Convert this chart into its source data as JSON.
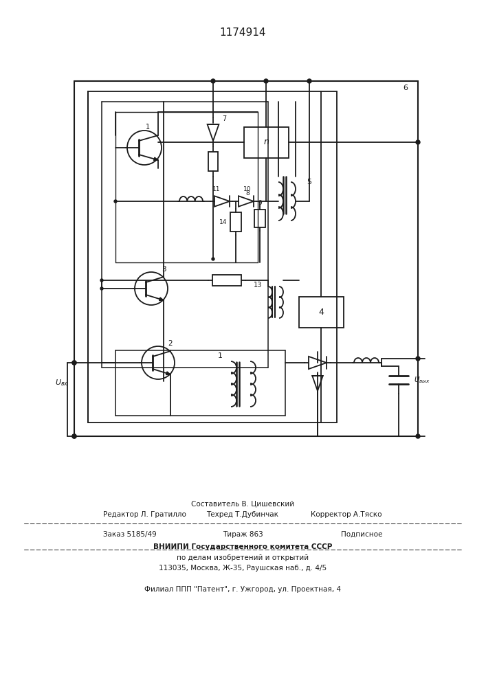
{
  "title": "1174914",
  "bg_color": "#ffffff",
  "line_color": "#1a1a1a",
  "footer": {
    "line1_left": "Редактор Л. Гратилло",
    "line1_center": "Техред Т.Дубинчак",
    "line1_right": "Корректор А.Тяско",
    "line0_center": "Составитель В. Цишевский",
    "line2_left": "Заказ 5185/49",
    "line2_center": "Тираж 863",
    "line2_right": "Подписное",
    "line3": "ВНИИПИ Государственного комитета СССР",
    "line4": "по делам изобретений и открытий",
    "line5": "113035, Москва, Ж-35, Раушская наб., д. 4/5",
    "line6": "Филиал ППП \"Патент\", г. Ужгород, ул. Проектная, 4"
  }
}
